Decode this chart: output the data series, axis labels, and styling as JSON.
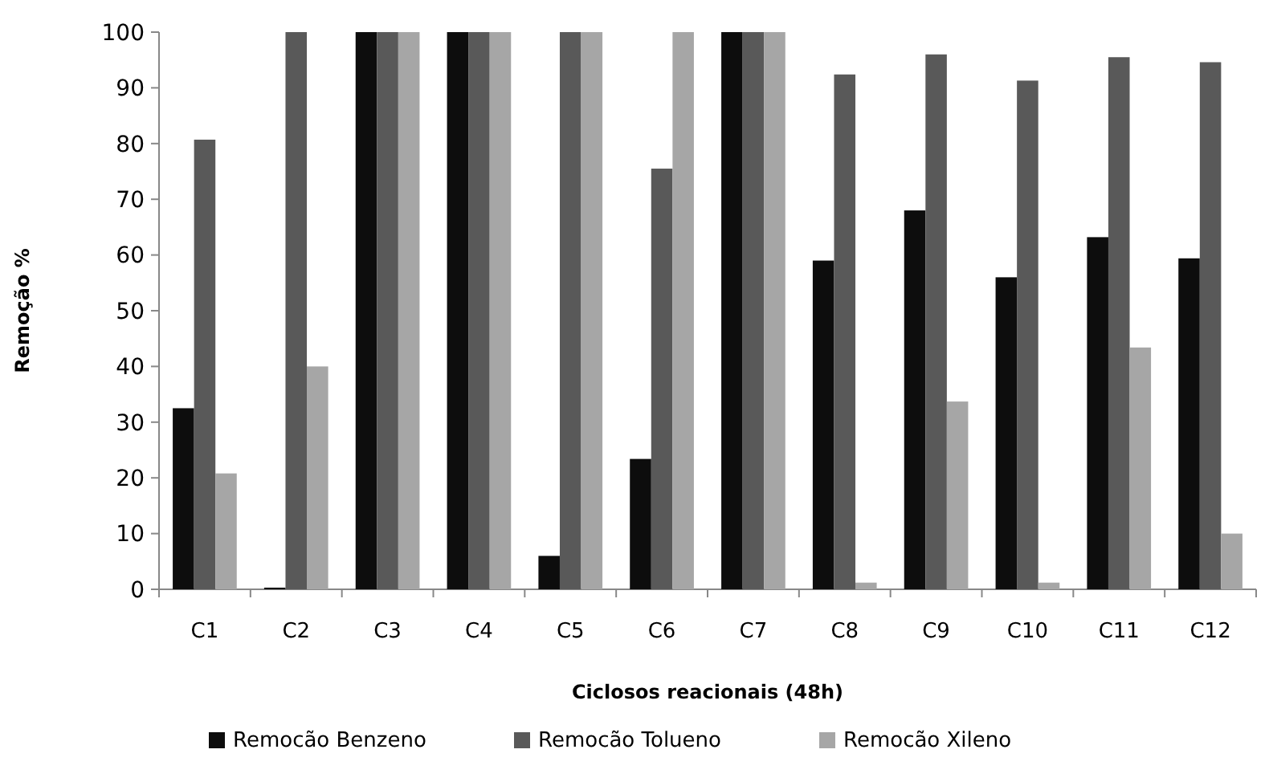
{
  "chart_data": {
    "type": "bar",
    "xlabel": "Ciclosos reacionais  (48h)",
    "ylabel": "Remoção %",
    "categories": [
      "C1",
      "C2",
      "C3",
      "C4",
      "C5",
      "C6",
      "C7",
      "C8",
      "C9",
      "C10",
      "C11",
      "C12"
    ],
    "series": [
      {
        "name": "Remocão Benzeno",
        "color": "#0d0d0d",
        "values": [
          32.5,
          0.3,
          100,
          100,
          6,
          23.4,
          100,
          59,
          68,
          56,
          63.2,
          59.4
        ]
      },
      {
        "name": "Remocão Tolueno",
        "color": "#595959",
        "values": [
          80.7,
          100,
          100,
          100,
          100,
          75.5,
          100,
          92.4,
          96,
          91.3,
          95.5,
          94.6
        ]
      },
      {
        "name": "Remocão Xileno",
        "color": "#a6a6a6",
        "values": [
          20.8,
          40,
          100,
          100,
          100,
          100,
          100,
          1.2,
          33.7,
          1.2,
          43.4,
          10
        ]
      }
    ],
    "ylim": [
      0,
      100
    ],
    "yticks": [
      0,
      10,
      20,
      30,
      40,
      50,
      60,
      70,
      80,
      90,
      100
    ],
    "legend": "bottom",
    "grid": false
  }
}
